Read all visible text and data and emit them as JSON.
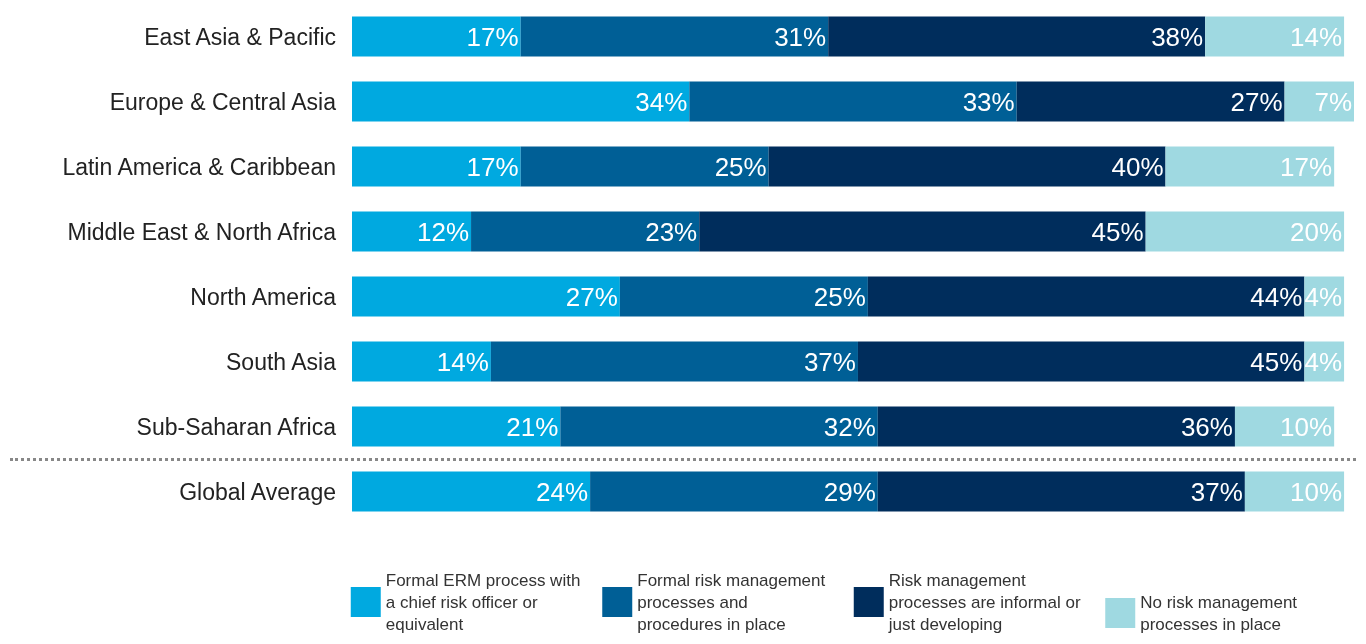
{
  "chart_data": {
    "type": "bar",
    "orientation": "horizontal",
    "stacked": true,
    "tick_labels": "y",
    "legend": "bottom",
    "xlim": [
      0,
      101
    ],
    "categories": [
      "East Asia & Pacific",
      "Europe & Central Asia",
      "Latin America & Caribbean",
      "Middle East & North Africa",
      "North America",
      "South Asia",
      "Sub-Saharan Africa",
      "Global Average"
    ],
    "series": [
      {
        "name": "Formal ERM process with a chief risk officer or equivalent",
        "color": "#00a9e0",
        "values": [
          17,
          34,
          17,
          12,
          27,
          14,
          21,
          24
        ],
        "value_labels": [
          "17%",
          "34%",
          "17%",
          "12%",
          "27%",
          "14%",
          "21%",
          "24%"
        ]
      },
      {
        "name": "Formal risk management processes and procedures in place",
        "color": "#005f96",
        "values": [
          31,
          33,
          25,
          23,
          25,
          37,
          32,
          29
        ],
        "value_labels": [
          "31%",
          "33%",
          "25%",
          "23%",
          "25%",
          "37%",
          "32%",
          "29%"
        ]
      },
      {
        "name": "Risk management processes are informal or just developing",
        "color": "#002d5c",
        "values": [
          38,
          27,
          40,
          45,
          44,
          45,
          36,
          37
        ],
        "value_labels": [
          "38%",
          "27%",
          "40%",
          "45%",
          "44%",
          "45%",
          "36%",
          "37%"
        ]
      },
      {
        "name": "No risk management processes in place",
        "color": "#9fd9e1",
        "values": [
          14,
          7,
          17,
          20,
          4,
          4,
          10,
          10
        ],
        "value_labels": [
          "14%",
          "7%",
          "17%",
          "20%",
          "4%",
          "4%",
          "10%",
          "10%"
        ]
      }
    ]
  }
}
